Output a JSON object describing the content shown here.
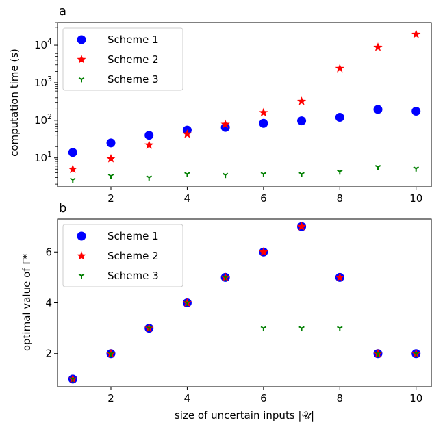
{
  "chart_data": [
    {
      "panel_label": "a",
      "type": "scatter",
      "xlabel": "",
      "ylabel": "computation time (s)",
      "yscale": "log",
      "xlim": [
        0.6,
        10.4
      ],
      "ylim": [
        1.7,
        40000
      ],
      "xticks": [
        2,
        4,
        6,
        8,
        10
      ],
      "xtick_labels": [
        "2",
        "4",
        "6",
        "8",
        "10"
      ],
      "yticks": [
        10,
        100,
        1000,
        10000
      ],
      "ytick_labels": [
        "10^1",
        "10^2",
        "10^3",
        "10^4"
      ],
      "legend_position": "upper-left",
      "grid": false,
      "x": [
        1,
        2,
        3,
        4,
        5,
        6,
        7,
        8,
        9,
        10
      ],
      "series": [
        {
          "name": "Scheme 1",
          "marker": "circle",
          "color": "#0000ff",
          "values": [
            14,
            25,
            40,
            55,
            65,
            83,
            97,
            120,
            195,
            175
          ]
        },
        {
          "name": "Scheme 2",
          "marker": "star",
          "color": "#ff0000",
          "values": [
            5,
            9.5,
            22,
            43,
            78,
            160,
            320,
            2400,
            8800,
            19500
          ]
        },
        {
          "name": "Scheme 3",
          "marker": "tri-down",
          "color": "#007f00",
          "values": [
            2.6,
            3.3,
            3.0,
            3.7,
            3.5,
            3.7,
            3.7,
            4.3,
            5.7,
            5.2
          ]
        }
      ]
    },
    {
      "panel_label": "b",
      "type": "scatter",
      "xlabel": "size of uncertain inputs |𝒰|",
      "ylabel": "optimal value of Γ*",
      "yscale": "linear",
      "xlim": [
        0.6,
        10.4
      ],
      "ylim": [
        0.7,
        7.3
      ],
      "xticks": [
        2,
        4,
        6,
        8,
        10
      ],
      "xtick_labels": [
        "2",
        "4",
        "6",
        "8",
        "10"
      ],
      "yticks": [
        2,
        4,
        6
      ],
      "ytick_labels": [
        "2",
        "4",
        "6"
      ],
      "legend_position": "upper-left",
      "grid": false,
      "x": [
        1,
        2,
        3,
        4,
        5,
        6,
        7,
        8,
        9,
        10
      ],
      "series": [
        {
          "name": "Scheme 1",
          "marker": "circle",
          "color": "#0000ff",
          "values": [
            1,
            2,
            3,
            4,
            5,
            6,
            7,
            5,
            2,
            2
          ]
        },
        {
          "name": "Scheme 2",
          "marker": "star",
          "color": "#ff0000",
          "values": [
            1,
            2,
            3,
            4,
            5,
            6,
            7,
            5,
            2,
            2
          ]
        },
        {
          "name": "Scheme 3",
          "marker": "tri-down",
          "color": "#007f00",
          "values": [
            1,
            2,
            3,
            4,
            5,
            3,
            3,
            3,
            2,
            2
          ]
        }
      ]
    }
  ]
}
